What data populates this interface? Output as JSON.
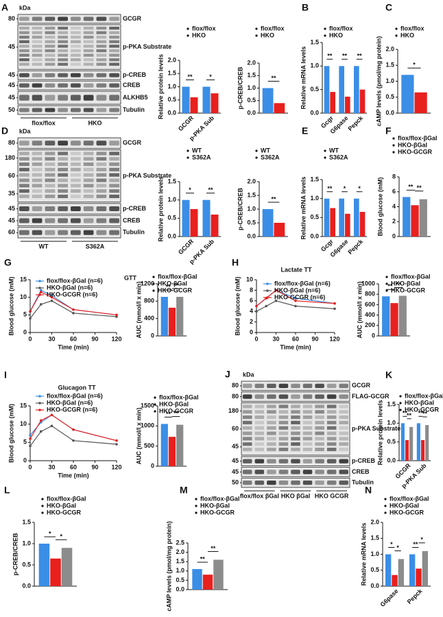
{
  "blots": [
    {
      "panel": "A",
      "unit": "kDa",
      "groups": [
        "flox/flox",
        "HKO"
      ],
      "rows": [
        {
          "protein": "GCGR",
          "markers": [
            "80"
          ]
        },
        {
          "protein": "p-PKA Substrate",
          "markers": [
            "45"
          ]
        },
        {
          "protein": "p-CREB",
          "markers": [
            "45"
          ]
        },
        {
          "protein": "CREB",
          "markers": [
            "45"
          ]
        },
        {
          "protein": "ALKHB5",
          "markers": [
            "45"
          ]
        },
        {
          "protein": "Tubulin",
          "markers": [
            "50"
          ]
        }
      ]
    },
    {
      "panel": "D",
      "unit": "kDa",
      "groups": [
        "WT",
        "S362A"
      ],
      "rows": [
        {
          "protein": "GCGR",
          "markers": [
            "80"
          ]
        },
        {
          "protein": "p-PKA Substrate",
          "markers": [
            "180",
            "60",
            "35"
          ]
        },
        {
          "protein": "p-CREB",
          "markers": [
            "45"
          ]
        },
        {
          "protein": "CREB",
          "markers": [
            "45"
          ]
        },
        {
          "protein": "Tubulin",
          "markers": [
            "60"
          ]
        }
      ]
    },
    {
      "panel": "J",
      "unit": "kDa",
      "groups": [
        "flox/flox βGal",
        "HKO βGal",
        "HKO GCGR"
      ],
      "rows": [
        {
          "protein": "GCGR",
          "markers": [
            "80"
          ]
        },
        {
          "protein": "FLAG-GCGR",
          "markers": [
            "80"
          ]
        },
        {
          "protein": "p-PKA Substrate",
          "markers": [
            "180",
            "60",
            "45"
          ]
        },
        {
          "protein": "p-CREB",
          "markers": [
            "45"
          ]
        },
        {
          "protein": "CREB",
          "markers": [
            "45"
          ]
        },
        {
          "protein": "Tubulin",
          "markers": [
            "50"
          ]
        }
      ]
    }
  ],
  "chart_data": [
    {
      "type": "bar",
      "ylabel": "Relative protein levels",
      "categories": [
        "GCGR",
        "p-PKA Sub"
      ],
      "series": [
        {
          "name": "flox/flox",
          "color": "#3a8ee6",
          "values": [
            1.0,
            1.0
          ]
        },
        {
          "name": "HKO",
          "color": "#e8201e",
          "values": [
            0.6,
            0.75
          ]
        }
      ],
      "ylim": [
        0,
        2
      ],
      "yticks": [
        {
          "value": 0,
          "label": "0.0"
        },
        0.5,
        {
          "value": 1,
          "label": "1.0"
        },
        1.5,
        {
          "value": 2,
          "label": "2.0"
        }
      ],
      "annotations": [
        "**",
        "*"
      ]
    },
    {
      "type": "bar",
      "ylabel": "p-CREB/CREB",
      "series": [
        {
          "name": "flox/flox",
          "color": "#3a8ee6",
          "values": [
            1.0
          ]
        },
        {
          "name": "HKO",
          "color": "#e8201e",
          "values": [
            0.4
          ]
        }
      ],
      "ylim": [
        0,
        2
      ],
      "yticks": [
        {
          "value": 0,
          "label": "0.0"
        },
        0.5,
        {
          "value": 1,
          "label": "1.0"
        },
        1.5,
        {
          "value": 2,
          "label": "2.0"
        }
      ],
      "annotations": [
        "**"
      ]
    },
    {
      "type": "bar",
      "panel": "B",
      "ylabel": "Relative mRNA levels",
      "categories": [
        "Gcgr",
        "G6pase",
        "Pepck"
      ],
      "series": [
        {
          "name": "flox/flox",
          "color": "#3a8ee6",
          "values": [
            1.0,
            1.0,
            1.0
          ]
        },
        {
          "name": "HKO",
          "color": "#e8201e",
          "values": [
            0.45,
            0.35,
            0.5
          ]
        }
      ],
      "ylim": [
        0,
        1.5
      ],
      "yticks": [
        {
          "value": 0,
          "label": "0.0"
        },
        0.5,
        {
          "value": 1,
          "label": "1.0"
        },
        1.5
      ],
      "annotations": [
        "**",
        "**",
        "**"
      ]
    },
    {
      "type": "bar",
      "panel": "C",
      "ylabel": "cAMP levels (pmol/mg protein)",
      "series": [
        {
          "name": "flox/flox",
          "color": "#3a8ee6",
          "values": [
            1.2
          ]
        },
        {
          "name": "HKO",
          "color": "#e8201e",
          "values": [
            0.65
          ]
        }
      ],
      "ylim": [
        0,
        2
      ],
      "yticks": [
        {
          "value": 0,
          "label": "0.0"
        },
        0.5,
        {
          "value": 1,
          "label": "1.0"
        },
        1.5,
        {
          "value": 2,
          "label": "2.0"
        }
      ],
      "annotations": [
        "*"
      ]
    },
    {
      "type": "bar",
      "ylabel": "Relative protein levels",
      "categories": [
        "GCGR",
        "p-PKA Sub"
      ],
      "series": [
        {
          "name": "WT",
          "color": "#3a8ee6",
          "values": [
            1.0,
            1.0
          ]
        },
        {
          "name": "S362A",
          "color": "#e8201e",
          "values": [
            0.75,
            0.6
          ]
        }
      ],
      "ylim": [
        0,
        1.5
      ],
      "yticks": [
        {
          "value": 0,
          "label": "0.0"
        },
        0.5,
        {
          "value": 1,
          "label": "1.0"
        },
        1.5
      ],
      "annotations": [
        "*",
        "**"
      ]
    },
    {
      "type": "bar",
      "ylabel": "p-CREB/CREB",
      "series": [
        {
          "name": "WT",
          "color": "#3a8ee6",
          "values": [
            1.0
          ]
        },
        {
          "name": "S362A",
          "color": "#e8201e",
          "values": [
            0.5
          ]
        }
      ],
      "ylim": [
        0,
        2
      ],
      "yticks": [
        {
          "value": 0,
          "label": "0.0"
        },
        0.5,
        {
          "value": 1,
          "label": "1.0"
        },
        1.5,
        {
          "value": 2,
          "label": "2.0"
        }
      ],
      "annotations": [
        "**"
      ]
    },
    {
      "type": "bar",
      "panel": "E",
      "ylabel": "Relative mRNA levels",
      "categories": [
        "Gcgr",
        "G6pase",
        "Pepck"
      ],
      "series": [
        {
          "name": "WT",
          "color": "#3a8ee6",
          "values": [
            1.0,
            1.0,
            1.0
          ]
        },
        {
          "name": "S362A",
          "color": "#e8201e",
          "values": [
            0.75,
            0.6,
            0.65
          ]
        }
      ],
      "ylim": [
        0,
        1.5
      ],
      "yticks": [
        {
          "value": 0,
          "label": "0.0"
        },
        0.5,
        {
          "value": 1,
          "label": "1.0"
        },
        1.5
      ],
      "annotations": [
        "**",
        "*",
        "*"
      ]
    },
    {
      "type": "bar",
      "panel": "F",
      "ylabel": "Blood glucose (mM)",
      "series": [
        {
          "name": "flox/flox-βGal",
          "color": "#3a8ee6",
          "values": [
            5.3
          ]
        },
        {
          "name": "HKO-βGal",
          "color": "#e8201e",
          "values": [
            4.2
          ]
        },
        {
          "name": "HKO-GCGR",
          "color": "#8c8c8c",
          "values": [
            5.0
          ]
        }
      ],
      "ylim": [
        0,
        8
      ],
      "yticks": [
        0,
        2,
        4,
        6,
        8
      ],
      "annotations": [
        "**",
        "**"
      ]
    },
    {
      "type": "line",
      "panel": "G",
      "ylabel": "Blood glucose (mM)",
      "xlabel": "Time (min)",
      "x": [
        0,
        15,
        30,
        60,
        120
      ],
      "xlim": [
        0,
        120
      ],
      "xticks": [
        0,
        30,
        60,
        90,
        120
      ],
      "series": [
        {
          "name": "flox/flox-βGal (n=6)",
          "color": "#3a8ee6",
          "values": [
            6,
            12,
            10.5,
            6.5,
            5
          ]
        },
        {
          "name": "HKO-βGal (n=6)",
          "color": "#555555",
          "values": [
            4,
            8,
            9,
            5.5,
            4.5
          ]
        },
        {
          "name": "HKO-GCGR (n=6)",
          "color": "#e8201e",
          "values": [
            6,
            11.5,
            10,
            6.5,
            5
          ]
        }
      ],
      "ylim": [
        0,
        15
      ],
      "yticks": [
        0,
        5,
        10,
        15
      ]
    },
    {
      "type": "bar",
      "title": "GTT",
      "ylabel": "AUC (mmol/l x min)",
      "series": [
        {
          "name": "flox/flox-βGal",
          "color": "#3a8ee6",
          "values": [
            900
          ]
        },
        {
          "name": "HKO-βGal",
          "color": "#e8201e",
          "values": [
            650
          ]
        },
        {
          "name": "HKO-GCGR",
          "color": "#8c8c8c",
          "values": [
            900
          ]
        }
      ],
      "ylim": [
        0,
        1200
      ],
      "yticks": [
        0,
        400,
        800,
        1200
      ],
      "annotations": [
        "**",
        "**"
      ]
    },
    {
      "type": "line",
      "panel": "H",
      "title": "Lactate TT",
      "ylabel": "Blood glucose (mM)",
      "xlabel": "Time (min)",
      "x": [
        0,
        15,
        30,
        60,
        120
      ],
      "xlim": [
        0,
        120
      ],
      "xticks": [
        0,
        30,
        60,
        90,
        120
      ],
      "series": [
        {
          "name": "flox/flox-βGal (n=6)",
          "color": "#3a8ee6",
          "values": [
            5,
            6.5,
            8,
            6.5,
            5.5
          ]
        },
        {
          "name": "HKO-βGal (n=6)",
          "color": "#555555",
          "values": [
            4,
            5,
            6,
            5,
            4.5
          ]
        },
        {
          "name": "HKO-GCGR (n=6)",
          "color": "#e8201e",
          "values": [
            5,
            6.5,
            8,
            6,
            5.5
          ]
        }
      ],
      "ylim": [
        0,
        10
      ],
      "yticks": [
        0,
        2,
        4,
        6,
        8,
        10
      ]
    },
    {
      "type": "bar",
      "ylabel": "AUC (mmol/l x min)",
      "series": [
        {
          "name": "flox/flox-βGal",
          "color": "#3a8ee6",
          "values": [
            760
          ]
        },
        {
          "name": "HKO-βGal",
          "color": "#e8201e",
          "values": [
            630
          ]
        },
        {
          "name": "HKO-GCGR",
          "color": "#8c8c8c",
          "values": [
            770
          ]
        }
      ],
      "ylim": [
        0,
        1000
      ],
      "yticks": [
        0,
        200,
        400,
        600,
        800,
        1000
      ],
      "annotations": [
        "**",
        "**"
      ]
    },
    {
      "type": "line",
      "panel": "I",
      "title": "Glucagon TT",
      "ylabel": "Blood glucose (mM)",
      "xlabel": "Time (min)",
      "x": [
        0,
        15,
        30,
        60,
        120
      ],
      "xlim": [
        0,
        120
      ],
      "xticks": [
        0,
        30,
        60,
        90,
        120
      ],
      "series": [
        {
          "name": "flox/flox-βGal (n=6)",
          "color": "#3a8ee6",
          "values": [
            7,
            10.5,
            12.5,
            8.5,
            5.5
          ]
        },
        {
          "name": "HKO-βGal (n=6)",
          "color": "#555555",
          "values": [
            4,
            8,
            9.5,
            5.5,
            4.5
          ]
        },
        {
          "name": "HKO-GCGR (n=6)",
          "color": "#e8201e",
          "values": [
            6,
            11,
            12.5,
            8.5,
            5.5
          ]
        }
      ],
      "ylim": [
        0,
        15
      ],
      "yticks": [
        0,
        5,
        10,
        15
      ]
    },
    {
      "type": "bar",
      "ylabel": "AUC (mmol/l x min)",
      "series": [
        {
          "name": "flox/flox-βGal",
          "color": "#3a8ee6",
          "values": [
            1050
          ]
        },
        {
          "name": "HKO-βGal",
          "color": "#e8201e",
          "values": [
            730
          ]
        },
        {
          "name": "HKO-GCGR",
          "color": "#8c8c8c",
          "values": [
            1030
          ]
        }
      ],
      "ylim": [
        0,
        1500
      ],
      "yticks": [
        0,
        500,
        1000,
        1500
      ],
      "annotations": [
        "**",
        "**"
      ]
    },
    {
      "type": "bar",
      "panel": "K",
      "ylabel": "Relative protein levels",
      "categories": [
        "GCGR",
        "p-PKA Sub"
      ],
      "series": [
        {
          "name": "flox/flox-βGal",
          "color": "#3a8ee6",
          "values": [
            1.0,
            1.0
          ]
        },
        {
          "name": "HKO-βGal",
          "color": "#e8201e",
          "values": [
            0.55,
            0.55
          ]
        },
        {
          "name": "HKO-GCGR",
          "color": "#8c8c8c",
          "values": [
            0.9,
            0.95
          ]
        }
      ],
      "ylim": [
        0,
        1.5
      ],
      "yticks": [
        {
          "value": 0,
          "label": "0.0"
        },
        0.5,
        {
          "value": 1,
          "label": "1.0"
        },
        1.5
      ],
      "annotations": [
        "**",
        "**",
        "**",
        "**"
      ]
    },
    {
      "type": "bar",
      "panel": "L",
      "ylabel": "p-CREB/CREB",
      "series": [
        {
          "name": "flox/flox-βGal",
          "color": "#3a8ee6",
          "values": [
            1.0
          ]
        },
        {
          "name": "HKO-βGal",
          "color": "#e8201e",
          "values": [
            0.65
          ]
        },
        {
          "name": "HKO-GCGR",
          "color": "#8c8c8c",
          "values": [
            0.9
          ]
        }
      ],
      "ylim": [
        0,
        1.5
      ],
      "yticks": [
        {
          "value": 0,
          "label": "0.0"
        },
        0.5,
        {
          "value": 1,
          "label": "1.0"
        },
        1.5
      ],
      "annotations": [
        "*",
        "*"
      ]
    },
    {
      "type": "bar",
      "panel": "M",
      "ylabel": "cAMP levels (pmol/mg protein)",
      "series": [
        {
          "name": "flox/flox-βGal",
          "color": "#3a8ee6",
          "values": [
            1.1
          ]
        },
        {
          "name": "HKO-βGal",
          "color": "#e8201e",
          "values": [
            0.8
          ]
        },
        {
          "name": "HKO-GCGR",
          "color": "#8c8c8c",
          "values": [
            1.6
          ]
        }
      ],
      "ylim": [
        0,
        2.5
      ],
      "yticks": [
        {
          "value": 0,
          "label": "0.0"
        },
        0.5,
        {
          "value": 1,
          "label": "1.0"
        },
        1.5,
        {
          "value": 2,
          "label": "2.0"
        },
        2.5
      ],
      "annotations": [
        "**",
        "**"
      ]
    },
    {
      "type": "bar",
      "panel": "N",
      "ylabel": "Relative mRNA levels",
      "categories": [
        "G6pase",
        "Pepck"
      ],
      "series": [
        {
          "name": "flox/flox-βGal",
          "color": "#3a8ee6",
          "values": [
            1.0,
            1.0
          ]
        },
        {
          "name": "HKO-βGal",
          "color": "#e8201e",
          "values": [
            0.35,
            0.55
          ]
        },
        {
          "name": "HKO-GCGR",
          "color": "#8c8c8c",
          "values": [
            0.85,
            1.1
          ]
        }
      ],
      "ylim": [
        0,
        2
      ],
      "yticks": [
        {
          "value": 0,
          "label": "0.0"
        },
        0.5,
        {
          "value": 1,
          "label": "1.0"
        },
        1.5,
        {
          "value": 2,
          "label": "2.0"
        }
      ],
      "annotations": [
        "*",
        "*",
        "**",
        "*"
      ]
    }
  ]
}
